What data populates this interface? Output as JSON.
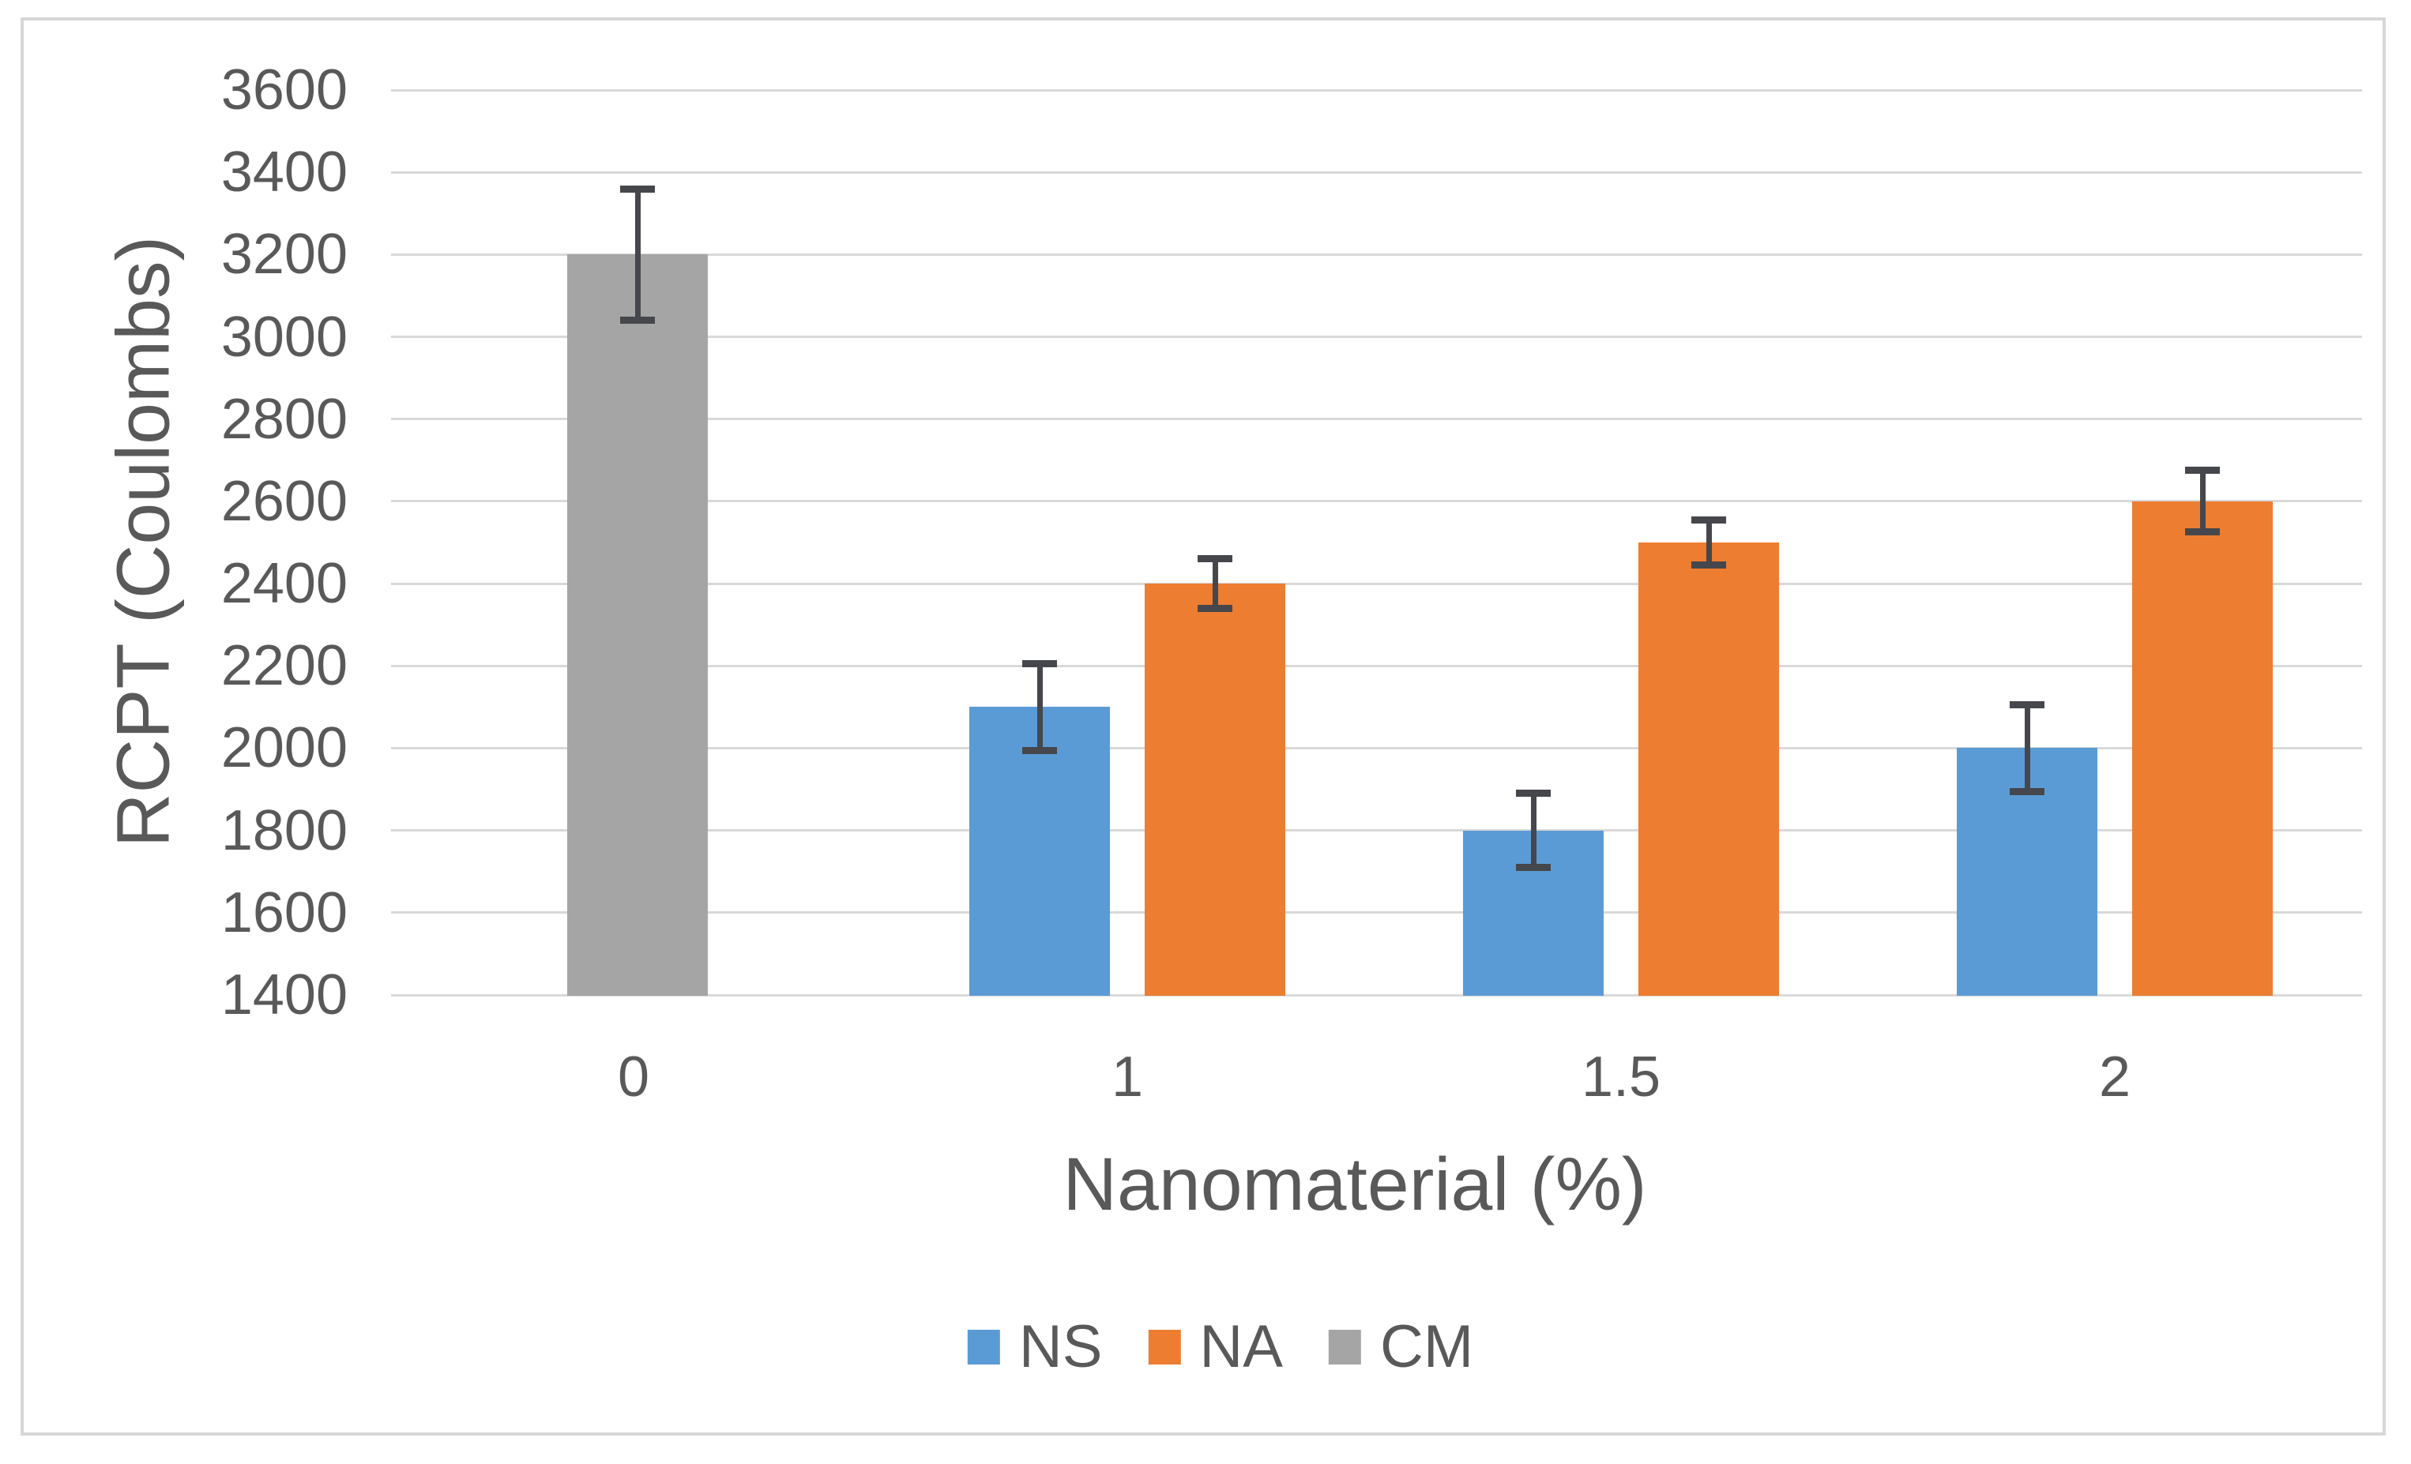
{
  "figure": {
    "background": "#FFFFFF",
    "border_color": "#D7D7D7"
  },
  "chart_data": {
    "type": "bar",
    "title": "",
    "xlabel": "Nanomaterial (%)",
    "ylabel": "RCPT (Coulombs)",
    "categories": [
      "0",
      "1",
      "1.5",
      "2"
    ],
    "series": [
      {
        "name": "NS",
        "color": "#5B9BD5",
        "values": [
          null,
          2100,
          1800,
          2000
        ],
        "errors": [
          null,
          105,
          90,
          105
        ]
      },
      {
        "name": "NA",
        "color": "#ED7D31",
        "values": [
          null,
          2400,
          2500,
          2600
        ],
        "errors": [
          null,
          60,
          55,
          75
        ]
      },
      {
        "name": "CM",
        "color": "#A5A5A5",
        "values": [
          3200,
          null,
          null,
          null
        ],
        "errors": [
          160,
          null,
          null,
          null
        ]
      }
    ],
    "y_axis": {
      "min": 1400,
      "max": 3600,
      "step": 200,
      "tick_labels": [
        "1400",
        "1600",
        "1800",
        "2000",
        "2200",
        "2400",
        "2600",
        "2800",
        "3000",
        "3200",
        "3400",
        "3600"
      ]
    },
    "grid": true,
    "gridline_color": "#D9D9D9",
    "error_bar_color": "#45474C",
    "text_color": "#595959",
    "legend_position": "bottom"
  }
}
